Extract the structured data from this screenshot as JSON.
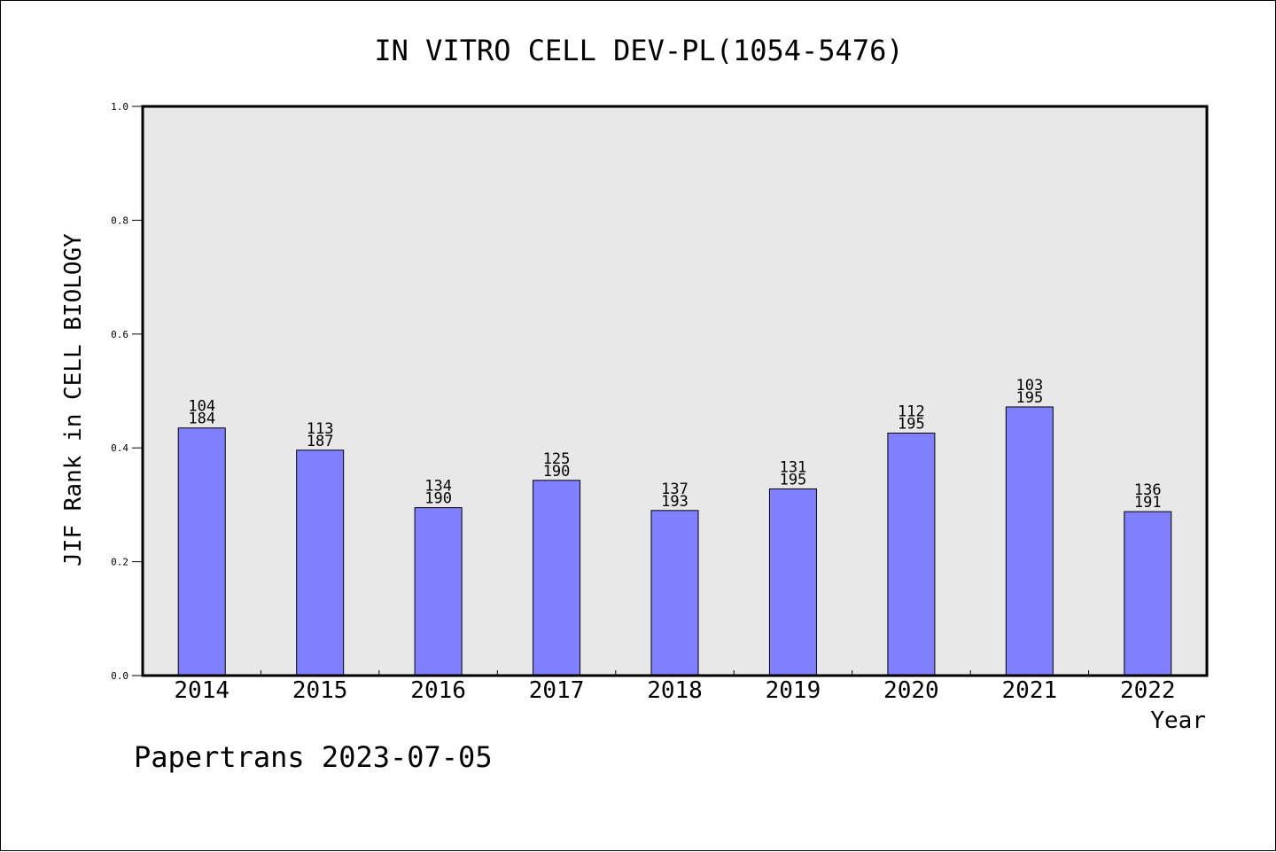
{
  "chart_data": {
    "type": "bar",
    "title": "IN VITRO CELL DEV-PL(1054-5476)",
    "xlabel": "Year",
    "ylabel": "JIF Rank in CELL BIOLOGY",
    "ylim": [
      0.0,
      1.0
    ],
    "yticks": [
      "0.0",
      "0.2",
      "0.4",
      "0.6",
      "0.8",
      "1.0"
    ],
    "categories": [
      "2014",
      "2015",
      "2016",
      "2017",
      "2018",
      "2019",
      "2020",
      "2021",
      "2022"
    ],
    "rank": [
      104,
      113,
      134,
      125,
      137,
      131,
      112,
      103,
      136
    ],
    "total": [
      184,
      187,
      190,
      190,
      193,
      195,
      195,
      195,
      191
    ],
    "values": [
      0.435,
      0.396,
      0.295,
      0.343,
      0.29,
      0.328,
      0.426,
      0.472,
      0.288
    ],
    "bar_color": "#8080ff",
    "plot_background": "#e8e8e8",
    "grid": false
  },
  "footer": {
    "text": "Papertrans 2023-07-05"
  }
}
